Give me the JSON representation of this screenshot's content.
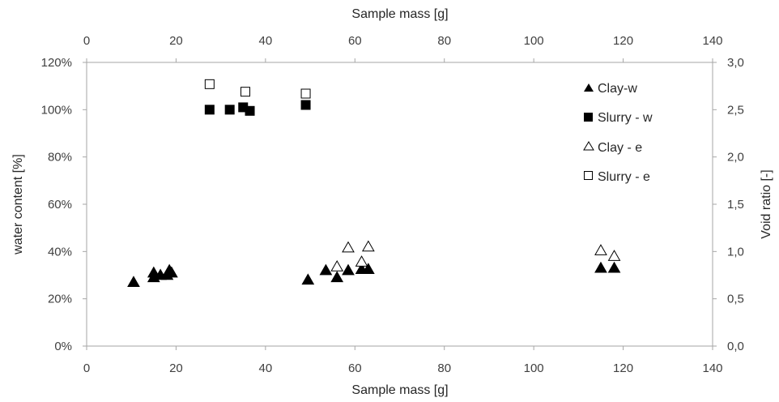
{
  "chart_data": {
    "type": "scatter",
    "x_bottom": {
      "label": "Sample mass [g]",
      "range": [
        0,
        140
      ],
      "ticks": [
        "0",
        "20",
        "40",
        "60",
        "80",
        "100",
        "120",
        "140"
      ]
    },
    "x_top": {
      "label": "Sample mass [g]",
      "range": [
        0,
        140
      ],
      "ticks": [
        "0",
        "20",
        "40",
        "60",
        "80",
        "100",
        "120",
        "140"
      ]
    },
    "y_left": {
      "label": "water content [%]",
      "range": [
        0,
        1.2
      ],
      "ticks": [
        "0%",
        "20%",
        "40%",
        "60%",
        "80%",
        "100%",
        "120%"
      ]
    },
    "y_right": {
      "label": "Void ratio [-]",
      "range": [
        0,
        3.0
      ],
      "ticks": [
        "0,0",
        "0,5",
        "1,0",
        "1,5",
        "2,0",
        "2,5",
        "3,0"
      ]
    },
    "grid": false,
    "legend_position": "top-right",
    "series": [
      {
        "name": "Clay-w",
        "marker": "filled-triangle",
        "axis": "left",
        "points": [
          [
            10.5,
            0.27
          ],
          [
            15.0,
            0.29
          ],
          [
            15.0,
            0.31
          ],
          [
            16.5,
            0.3
          ],
          [
            18.0,
            0.3
          ],
          [
            18.5,
            0.32
          ],
          [
            19.0,
            0.31
          ],
          [
            49.5,
            0.28
          ],
          [
            53.5,
            0.32
          ],
          [
            56.0,
            0.29
          ],
          [
            58.5,
            0.32
          ],
          [
            61.5,
            0.325
          ],
          [
            63.0,
            0.325
          ],
          [
            115.0,
            0.33
          ],
          [
            118.0,
            0.33
          ]
        ]
      },
      {
        "name": "Slurry - w",
        "marker": "filled-square",
        "axis": "left",
        "points": [
          [
            27.5,
            1.0
          ],
          [
            32.0,
            1.0
          ],
          [
            35.0,
            1.01
          ],
          [
            36.5,
            0.995
          ],
          [
            49.0,
            1.02
          ]
        ]
      },
      {
        "name": "Clay - e",
        "marker": "open-triangle",
        "axis": "right",
        "points": [
          [
            56.0,
            0.84
          ],
          [
            58.5,
            1.04
          ],
          [
            61.5,
            0.89
          ],
          [
            63.0,
            1.05
          ],
          [
            115.0,
            1.01
          ],
          [
            118.0,
            0.95
          ]
        ]
      },
      {
        "name": "Slurry - e",
        "marker": "open-square",
        "axis": "right",
        "points": [
          [
            27.5,
            2.77
          ],
          [
            35.5,
            2.69
          ],
          [
            49.0,
            2.67
          ]
        ]
      }
    ]
  }
}
